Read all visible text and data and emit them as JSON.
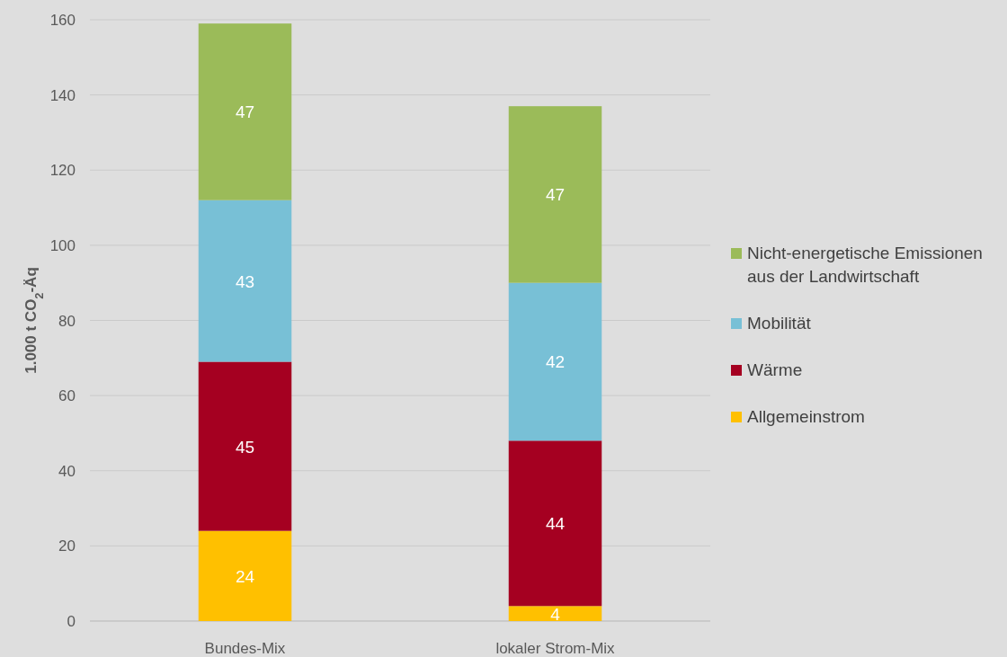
{
  "chart_data": {
    "type": "bar",
    "stacked": true,
    "ylabel": "1.000 t CO$_{2}$-Äq",
    "categories": [
      "Bundes-Mix",
      "lokaler Strom-Mix"
    ],
    "series": [
      {
        "name": "Allgemeinstrom",
        "color": "#ffc000",
        "values": [
          24,
          4
        ]
      },
      {
        "name": "Wärme",
        "color": "#a50021",
        "values": [
          45,
          44
        ]
      },
      {
        "name": "Mobilität",
        "color": "#78c0d6",
        "values": [
          43,
          42
        ]
      },
      {
        "name": "Nicht-energetische Emissionen aus der Landwirtschaft",
        "color": "#9bbb59",
        "values": [
          47,
          47
        ]
      }
    ],
    "ylim": [
      0,
      160
    ],
    "yticks": [
      0,
      20,
      40,
      60,
      80,
      100,
      120,
      140,
      160
    ],
    "grid": "y",
    "legend": "right",
    "data_labels": true
  }
}
